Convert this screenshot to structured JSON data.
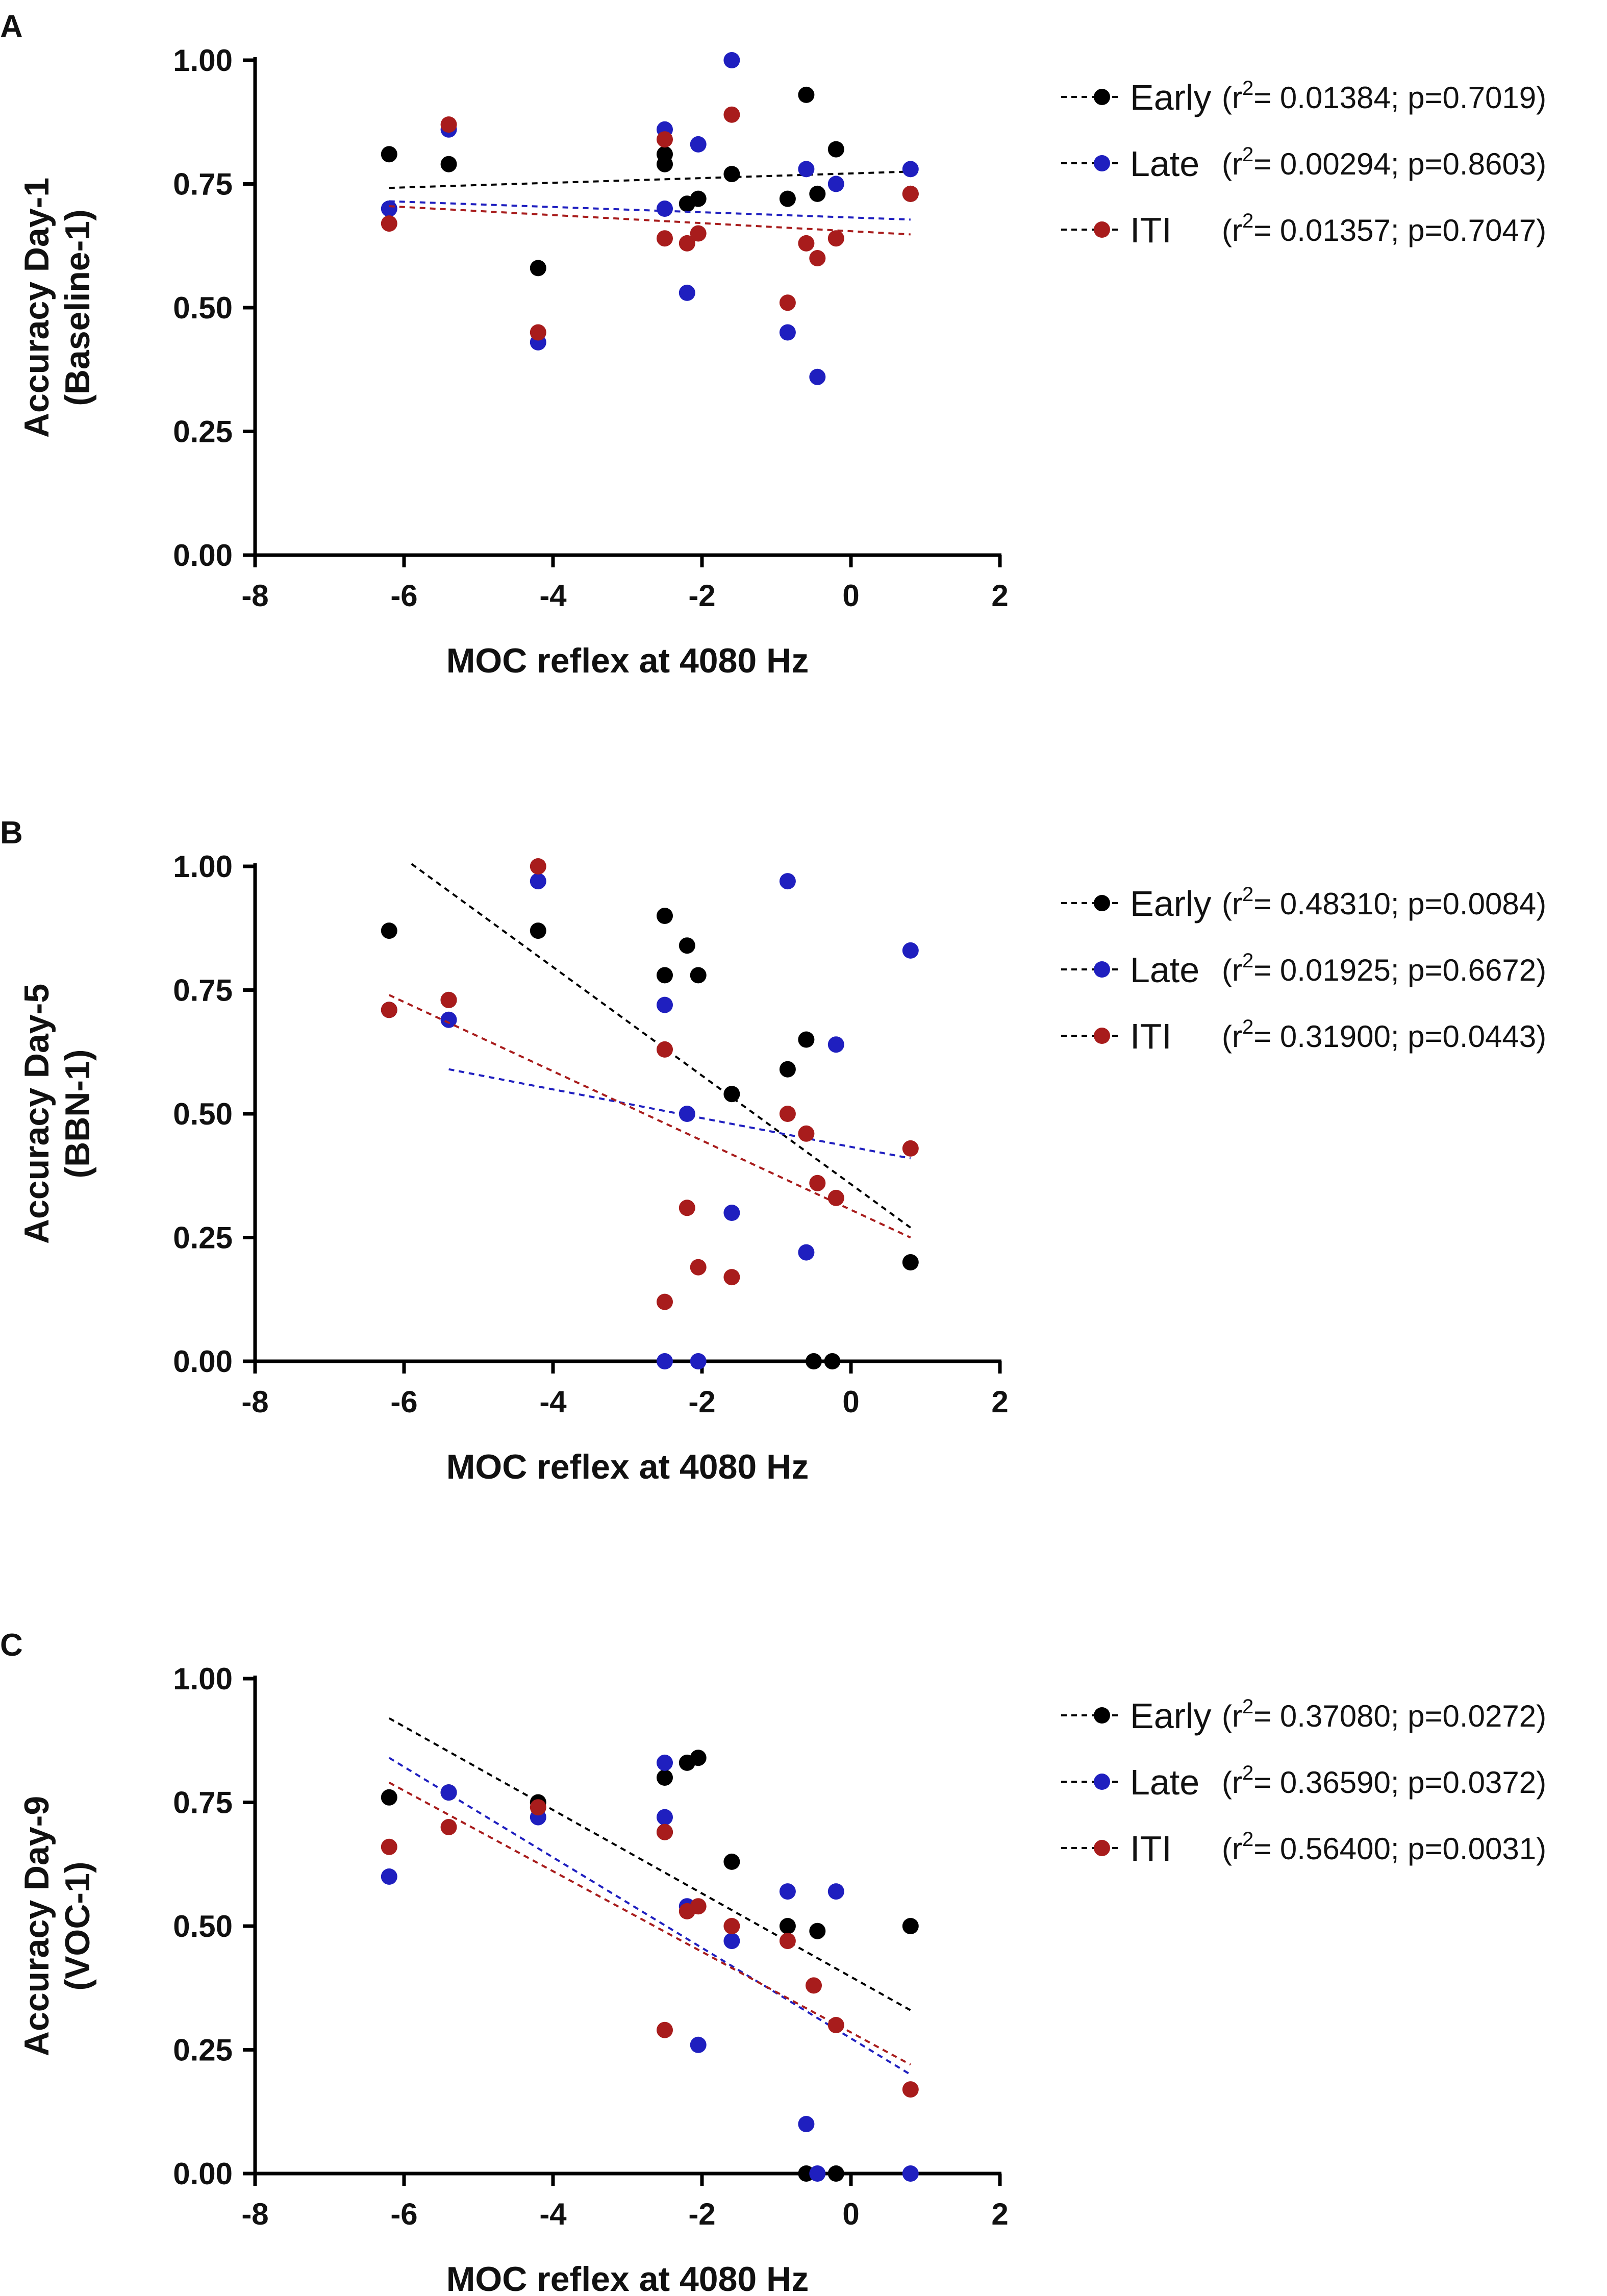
{
  "chart_data": [
    {
      "panel_letter": "A",
      "type": "scatter",
      "xlabel": "MOC reflex at 4080 Hz",
      "ylabel_line1": "Accuracy Day-1",
      "ylabel_line2": "(Baseline-1)",
      "xlim": [
        -8,
        2
      ],
      "ylim": [
        0,
        1
      ],
      "xticks": [
        "-8",
        "-6",
        "-4",
        "-2",
        "0",
        "2"
      ],
      "yticks": [
        "0.00",
        "0.25",
        "0.50",
        "0.75",
        "1.00"
      ],
      "series": [
        {
          "name": "Early",
          "color": "#000000",
          "r2": "0.01384",
          "p": "p=0.7019",
          "points": [
            [
              -6.2,
              0.81
            ],
            [
              -5.4,
              0.79
            ],
            [
              -4.2,
              0.58
            ],
            [
              -2.5,
              0.81
            ],
            [
              -2.5,
              0.79
            ],
            [
              -2.2,
              0.71
            ],
            [
              -2.05,
              0.72
            ],
            [
              -1.6,
              0.77
            ],
            [
              -0.85,
              0.72
            ],
            [
              -0.6,
              0.93
            ],
            [
              -0.45,
              0.73
            ],
            [
              -0.2,
              0.82
            ],
            [
              0.8,
              0.73
            ]
          ],
          "fit": [
            [
              -6.2,
              0.742
            ],
            [
              0.8,
              0.775
            ]
          ]
        },
        {
          "name": "Late",
          "color": "#1f1fbf",
          "r2": "0.00294",
          "p": "p=0.8603",
          "points": [
            [
              -6.2,
              0.7
            ],
            [
              -5.4,
              0.86
            ],
            [
              -4.2,
              0.43
            ],
            [
              -2.5,
              0.86
            ],
            [
              -2.5,
              0.7
            ],
            [
              -2.2,
              0.53
            ],
            [
              -2.05,
              0.83
            ],
            [
              -1.6,
              1.0
            ],
            [
              -0.85,
              0.45
            ],
            [
              -0.6,
              0.78
            ],
            [
              -0.45,
              0.36
            ],
            [
              -0.2,
              0.75
            ],
            [
              0.8,
              0.78
            ]
          ],
          "fit": [
            [
              -6.2,
              0.715
            ],
            [
              0.8,
              0.678
            ]
          ]
        },
        {
          "name": "ITI",
          "color": "#a81c1c",
          "r2": "0.01357",
          "p": "p=0.7047",
          "points": [
            [
              -6.2,
              0.67
            ],
            [
              -5.4,
              0.87
            ],
            [
              -4.2,
              0.45
            ],
            [
              -2.5,
              0.84
            ],
            [
              -2.5,
              0.64
            ],
            [
              -2.2,
              0.63
            ],
            [
              -2.05,
              0.65
            ],
            [
              -1.6,
              0.89
            ],
            [
              -0.85,
              0.51
            ],
            [
              -0.6,
              0.63
            ],
            [
              -0.45,
              0.6
            ],
            [
              -0.2,
              0.64
            ],
            [
              0.8,
              0.73
            ]
          ],
          "fit": [
            [
              -6.2,
              0.705
            ],
            [
              0.8,
              0.648
            ]
          ]
        }
      ]
    },
    {
      "panel_letter": "B",
      "type": "scatter",
      "xlabel": "MOC reflex at 4080 Hz",
      "ylabel_line1": "Accuracy Day-5",
      "ylabel_line2": "(BBN-1)",
      "xlim": [
        -8,
        2
      ],
      "ylim": [
        0,
        1
      ],
      "xticks": [
        "-8",
        "-6",
        "-4",
        "-2",
        "0",
        "2"
      ],
      "yticks": [
        "0.00",
        "0.25",
        "0.50",
        "0.75",
        "1.00"
      ],
      "series": [
        {
          "name": "Early",
          "color": "#000000",
          "r2": "0.48310",
          "p": "p=0.0084",
          "points": [
            [
              -6.2,
              0.87
            ],
            [
              -5.4,
              0.73
            ],
            [
              -4.2,
              0.87
            ],
            [
              -2.5,
              0.9
            ],
            [
              -2.5,
              0.78
            ],
            [
              -2.2,
              0.84
            ],
            [
              -2.05,
              0.78
            ],
            [
              -1.6,
              0.54
            ],
            [
              -0.85,
              0.59
            ],
            [
              -0.6,
              0.65
            ],
            [
              -0.5,
              0.0
            ],
            [
              -0.25,
              0.0
            ],
            [
              0.8,
              0.2
            ]
          ],
          "fit": [
            [
              -5.9,
              1.005
            ],
            [
              0.8,
              0.27
            ]
          ]
        },
        {
          "name": "Late",
          "color": "#1f1fbf",
          "r2": "0.01925",
          "p": "p=0.6672",
          "points": [
            [
              -6.2,
              0.71
            ],
            [
              -5.4,
              0.69
            ],
            [
              -4.2,
              0.97
            ],
            [
              -2.5,
              0.72
            ],
            [
              -2.5,
              0.0
            ],
            [
              -2.2,
              0.5
            ],
            [
              -2.05,
              0.0
            ],
            [
              -1.6,
              0.3
            ],
            [
              -0.85,
              0.97
            ],
            [
              -0.6,
              0.22
            ],
            [
              -0.2,
              0.64
            ],
            [
              0.8,
              0.83
            ]
          ],
          "fit": [
            [
              -5.4,
              0.59
            ],
            [
              0.8,
              0.41
            ]
          ]
        },
        {
          "name": "ITI",
          "color": "#a81c1c",
          "r2": "0.31900",
          "p": "p=0.0443",
          "points": [
            [
              -6.2,
              0.71
            ],
            [
              -5.4,
              0.73
            ],
            [
              -4.2,
              1.0
            ],
            [
              -2.5,
              0.63
            ],
            [
              -2.5,
              0.12
            ],
            [
              -2.2,
              0.31
            ],
            [
              -2.05,
              0.19
            ],
            [
              -1.6,
              0.17
            ],
            [
              -0.85,
              0.5
            ],
            [
              -0.6,
              0.46
            ],
            [
              -0.45,
              0.36
            ],
            [
              -0.2,
              0.33
            ],
            [
              0.8,
              0.43
            ]
          ],
          "fit": [
            [
              -6.2,
              0.74
            ],
            [
              0.8,
              0.25
            ]
          ]
        }
      ]
    },
    {
      "panel_letter": "C",
      "type": "scatter",
      "xlabel": "MOC reflex at 4080 Hz",
      "ylabel_line1": "Accuracy Day-9",
      "ylabel_line2": "(VOC-1)",
      "xlim": [
        -8,
        2
      ],
      "ylim": [
        0,
        1
      ],
      "xticks": [
        "-8",
        "-6",
        "-4",
        "-2",
        "0",
        "2"
      ],
      "yticks": [
        "0.00",
        "0.25",
        "0.50",
        "0.75",
        "1.00"
      ],
      "series": [
        {
          "name": "Early",
          "color": "#000000",
          "r2": "0.37080",
          "p": "p=0.0272",
          "points": [
            [
              -6.2,
              0.76
            ],
            [
              -5.4,
              0.77
            ],
            [
              -4.2,
              0.75
            ],
            [
              -2.5,
              0.8
            ],
            [
              -2.5,
              0.69
            ],
            [
              -2.2,
              0.83
            ],
            [
              -2.05,
              0.84
            ],
            [
              -1.6,
              0.63
            ],
            [
              -0.85,
              0.5
            ],
            [
              -0.6,
              0.0
            ],
            [
              -0.45,
              0.49
            ],
            [
              -0.2,
              0.0
            ],
            [
              0.8,
              0.5
            ]
          ],
          "fit": [
            [
              -6.2,
              0.92
            ],
            [
              0.8,
              0.33
            ]
          ]
        },
        {
          "name": "Late",
          "color": "#1f1fbf",
          "r2": "0.36590",
          "p": "p=0.0372",
          "points": [
            [
              -6.2,
              0.6
            ],
            [
              -5.4,
              0.77
            ],
            [
              -4.2,
              0.72
            ],
            [
              -2.5,
              0.83
            ],
            [
              -2.5,
              0.72
            ],
            [
              -2.2,
              0.54
            ],
            [
              -2.05,
              0.26
            ],
            [
              -1.6,
              0.47
            ],
            [
              -0.85,
              0.57
            ],
            [
              -0.6,
              0.1
            ],
            [
              -0.45,
              0.0
            ],
            [
              -0.2,
              0.57
            ],
            [
              0.8,
              0.0
            ]
          ],
          "fit": [
            [
              -6.2,
              0.84
            ],
            [
              0.8,
              0.2
            ]
          ]
        },
        {
          "name": "ITI",
          "color": "#a81c1c",
          "r2": "0.56400",
          "p": "p=0.0031",
          "points": [
            [
              -6.2,
              0.66
            ],
            [
              -5.4,
              0.7
            ],
            [
              -4.2,
              0.74
            ],
            [
              -2.5,
              0.29
            ],
            [
              -2.5,
              0.69
            ],
            [
              -2.2,
              0.53
            ],
            [
              -2.05,
              0.54
            ],
            [
              -1.6,
              0.5
            ],
            [
              -0.85,
              0.47
            ],
            [
              -0.5,
              0.38
            ],
            [
              -0.2,
              0.3
            ],
            [
              0.8,
              0.17
            ]
          ],
          "fit": [
            [
              -6.2,
              0.79
            ],
            [
              0.8,
              0.22
            ]
          ]
        }
      ]
    }
  ]
}
